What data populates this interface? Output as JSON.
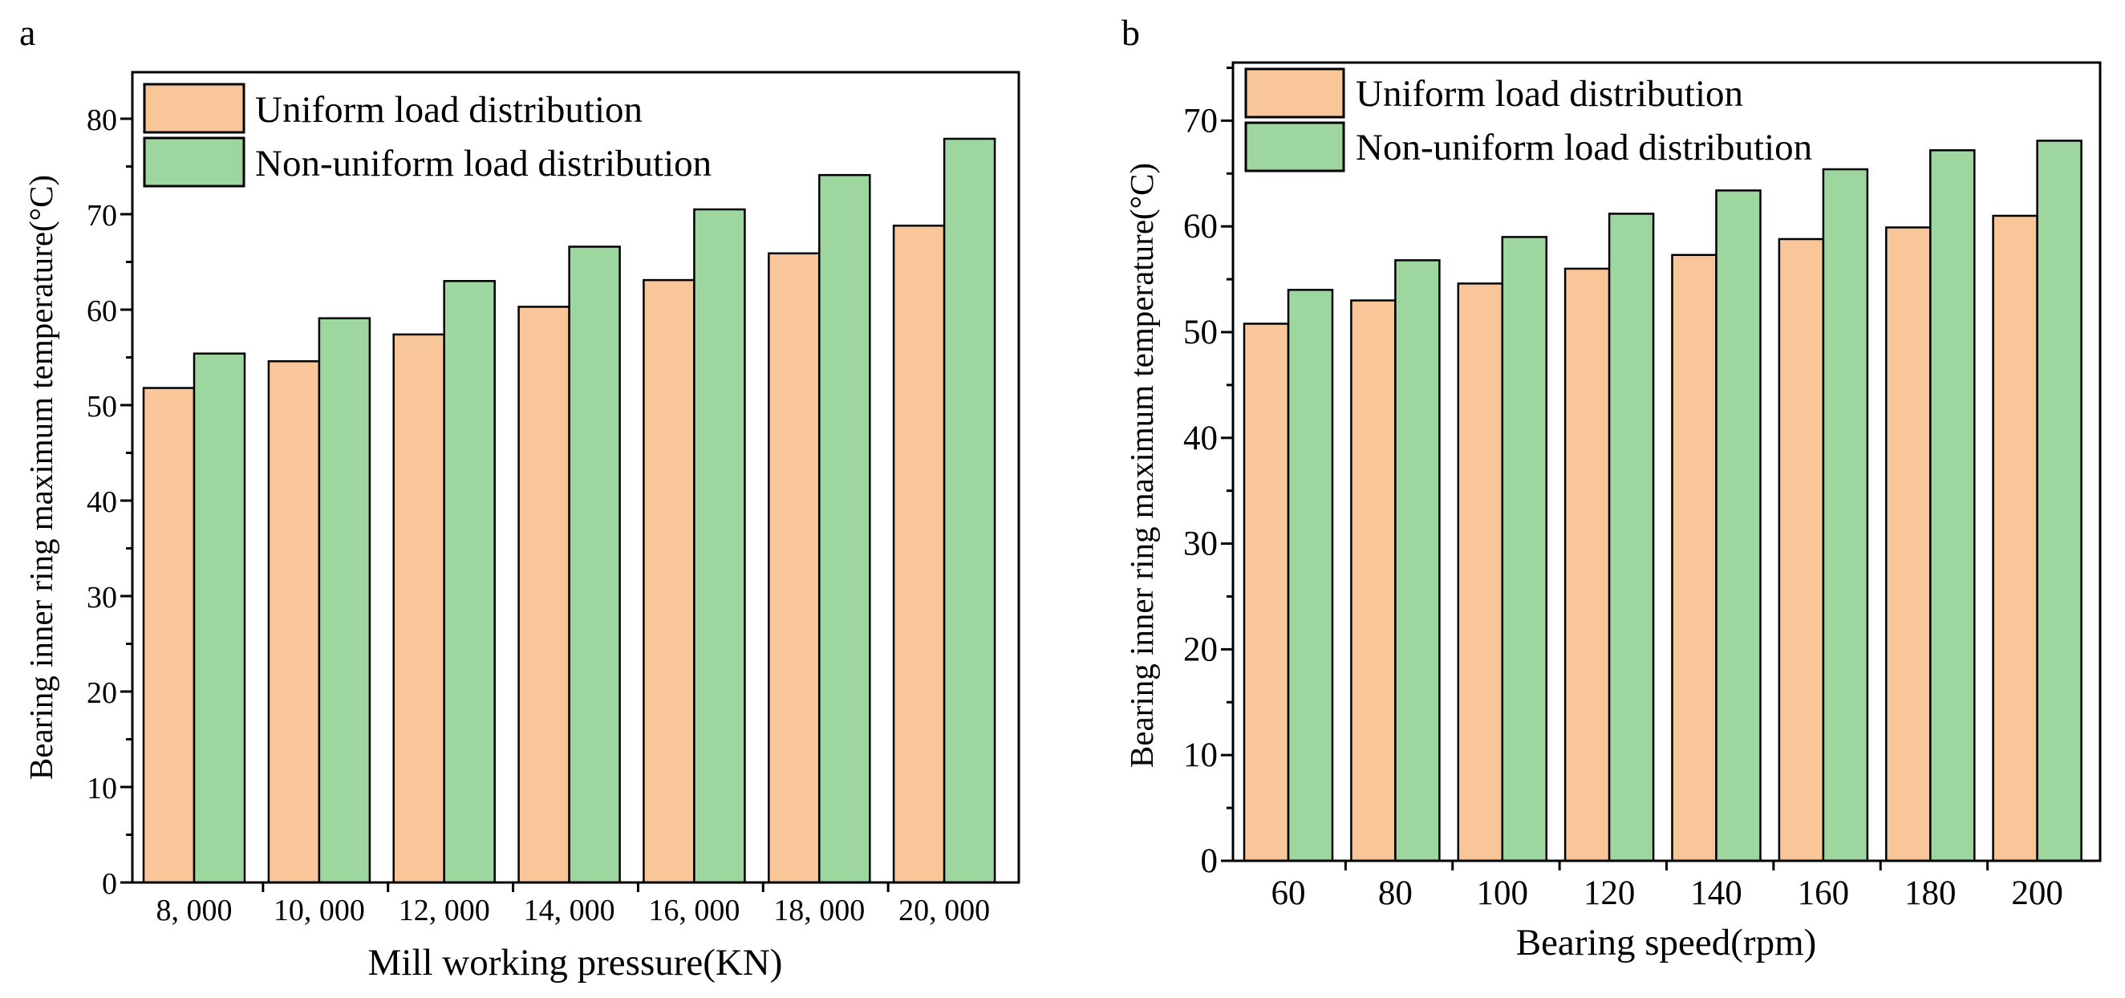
{
  "colors": {
    "uniform": "#f9c699",
    "nonuniform": "#9dd69e",
    "axis": "#000000"
  },
  "chart_data": [
    {
      "panel_label": "a",
      "type": "bar",
      "xlabel": "Mill working pressure(KN)",
      "ylabel": "Bearing inner ring maximum temperature(°C)",
      "categories": [
        "8, 000",
        "10, 000",
        "12, 000",
        "14, 000",
        "16, 000",
        "18, 000",
        "20, 000"
      ],
      "ylim": [
        0,
        85
      ],
      "yticks": [
        0,
        10,
        20,
        30,
        40,
        50,
        60,
        70,
        80
      ],
      "ytick_labels": [
        "0",
        "10",
        "20",
        "30",
        "40",
        "50",
        "60",
        "70",
        "80"
      ],
      "series": [
        {
          "name": "Uniform load distribution",
          "values": [
            51.8,
            54.6,
            57.4,
            60.3,
            63.1,
            65.9,
            68.8
          ]
        },
        {
          "name": "Non-uniform load distribution",
          "values": [
            55.4,
            59.1,
            63.0,
            66.6,
            70.5,
            74.1,
            77.9
          ]
        }
      ],
      "legend": "top-left"
    },
    {
      "panel_label": "b",
      "type": "bar",
      "xlabel": "Bearing speed(rpm)",
      "ylabel": "Bearing inner ring maximum temperature(°C)",
      "categories": [
        "60",
        "80",
        "100",
        "120",
        "140",
        "160",
        "180",
        "200"
      ],
      "ylim": [
        0,
        75
      ],
      "yticks": [
        0,
        10,
        20,
        30,
        40,
        50,
        60,
        70
      ],
      "ytick_labels": [
        "0",
        "10",
        "20",
        "30",
        "40",
        "50",
        "60",
        "70"
      ],
      "series": [
        {
          "name": "Uniform load distribution",
          "values": [
            50.8,
            53.0,
            54.6,
            56.0,
            57.3,
            58.8,
            59.9,
            61.0
          ]
        },
        {
          "name": "Non-uniform load distribution",
          "values": [
            54.0,
            56.8,
            59.0,
            61.2,
            63.4,
            65.4,
            67.2,
            68.1
          ]
        }
      ],
      "legend": "top-left"
    }
  ]
}
